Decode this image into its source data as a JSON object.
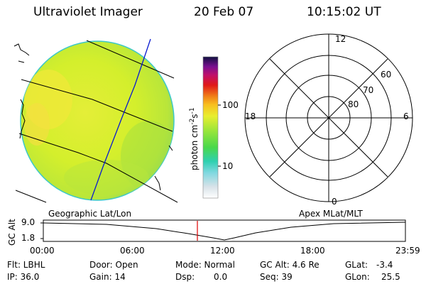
{
  "header": {
    "instrument": "Ultraviolet Imager",
    "date": "20 Feb 07",
    "time": "10:15:02 UT"
  },
  "colorbar": {
    "label_parts": [
      "photon cm",
      "-2",
      "s",
      "-1"
    ],
    "ticks": [
      "100",
      "10"
    ]
  },
  "polar": {
    "mlt_labels": [
      "12",
      "18",
      "6",
      "0"
    ],
    "lat_labels": [
      "60",
      "70",
      "80"
    ]
  },
  "strip": {
    "left_title": "Geographic Lat/Lon",
    "right_title": "Apex MLat/MLT",
    "axis_label": "GC Alt",
    "y_ticks": [
      "9.0",
      "1.8"
    ],
    "x_ticks": [
      "00:00",
      "06:00",
      "12:00",
      "18:00",
      "23:59"
    ]
  },
  "status": {
    "flt": "Flt: LBHL",
    "ip": "IP: 36.0",
    "door": "Door: Open",
    "gain": "Gain: 14",
    "mode": "Mode: Normal",
    "dsp": "Dsp:",
    "dsp_value": "0.0",
    "gc_alt": "GC Alt: 4.6 Re",
    "seq": "Seq: 39",
    "glat": "GLat:",
    "glat_value": "-3.4",
    "glon": "GLon:",
    "glon_value": "25.5"
  },
  "colors": {
    "disk_base": "#d7f02a",
    "disk_edge": "#3cc8c8",
    "grid_line": "#000000",
    "meridian": "#0a1ad0",
    "marker": "#e00000"
  }
}
